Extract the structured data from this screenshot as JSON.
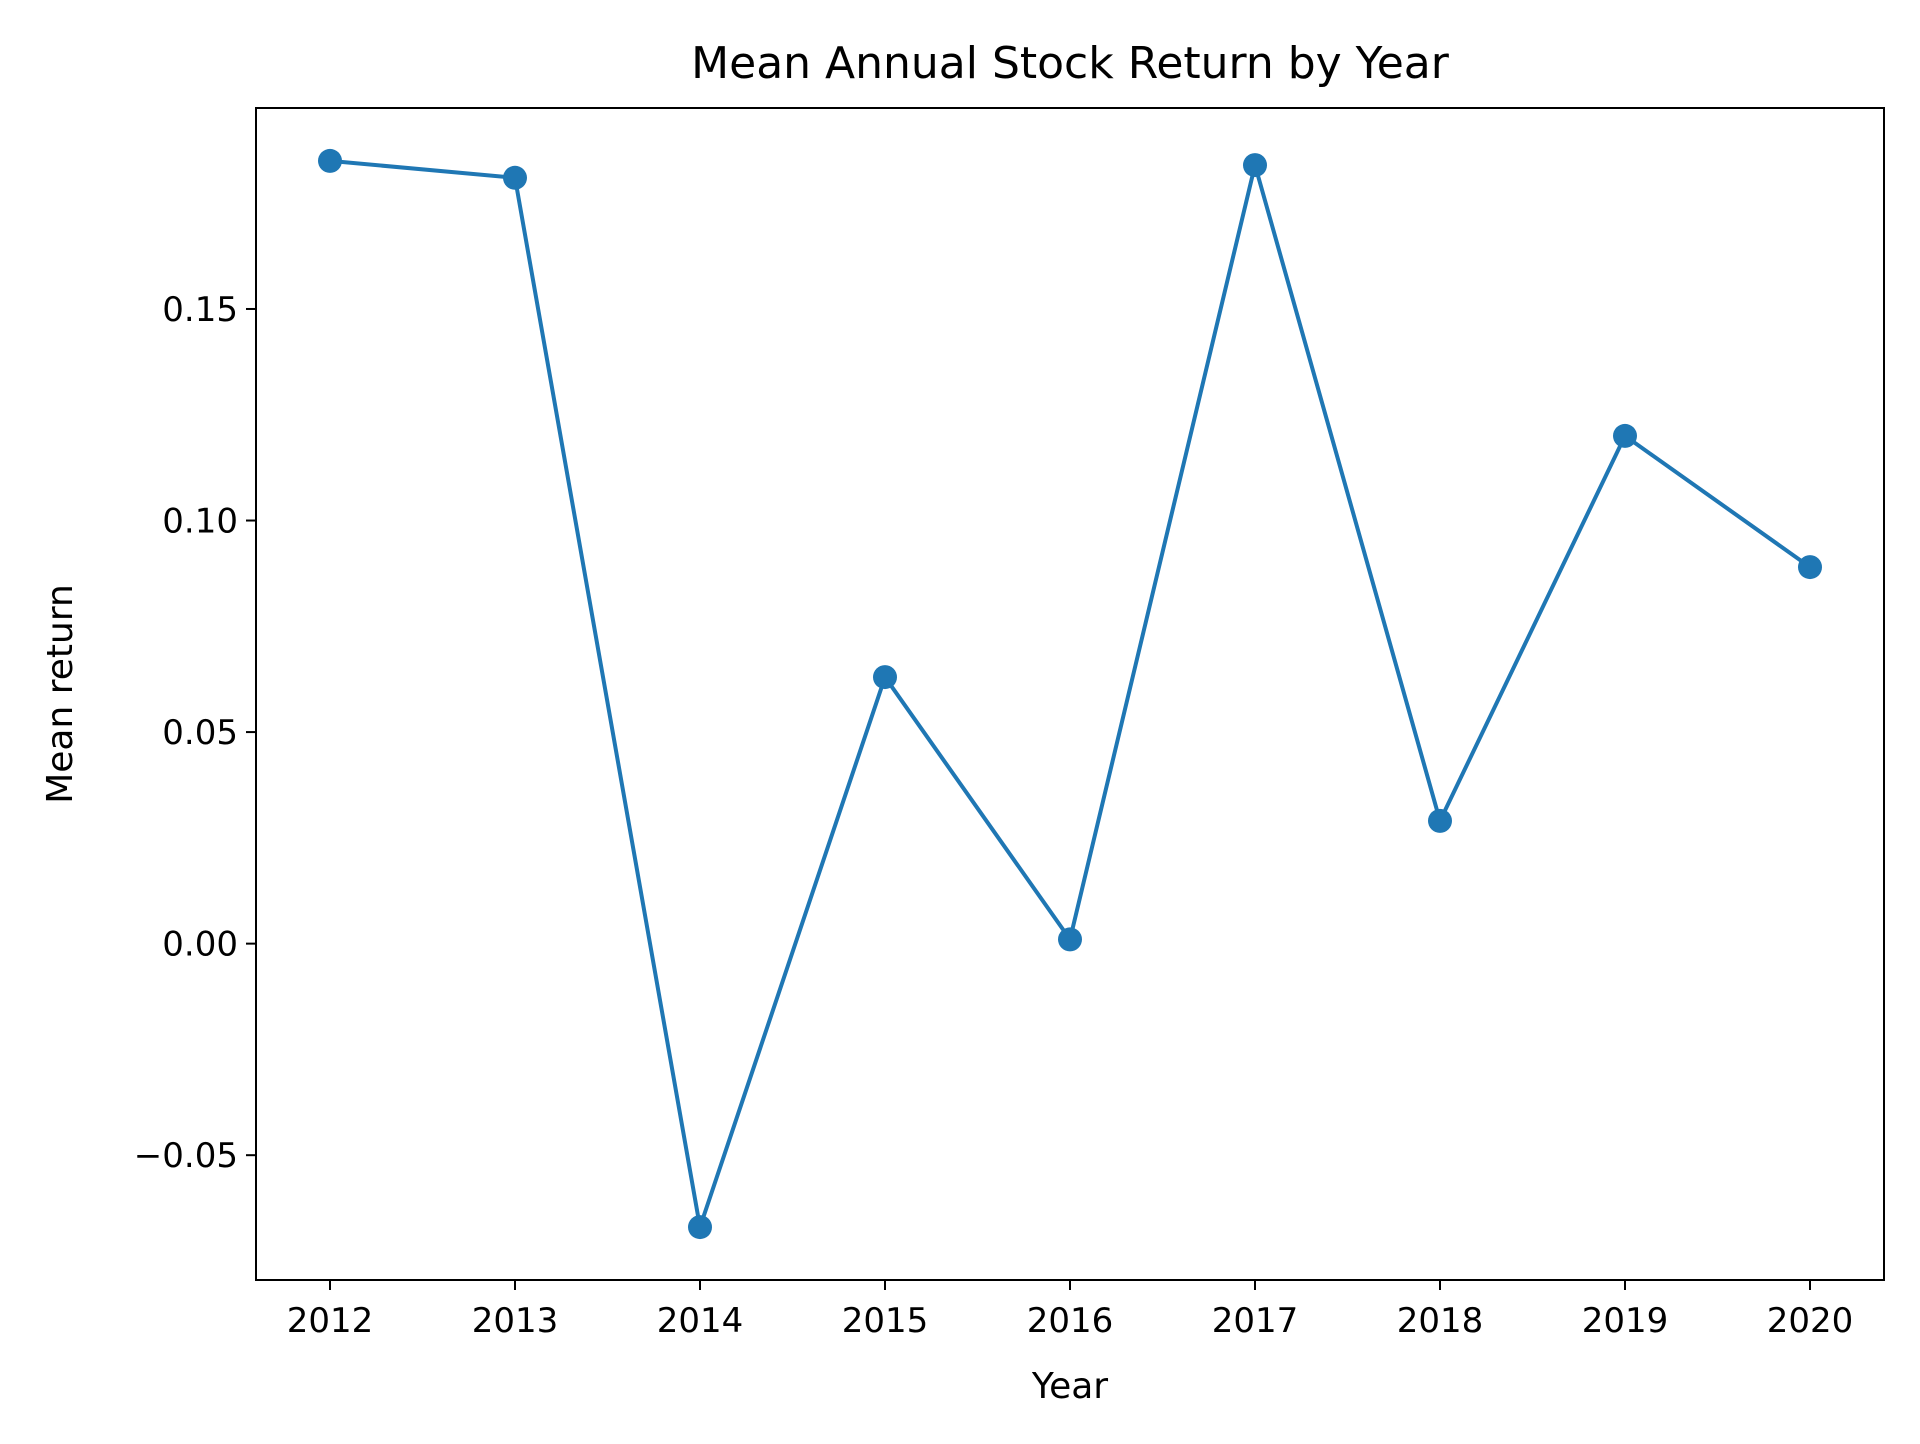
{
  "chart_data": {
    "type": "line",
    "title": "Mean Annual Stock Return by Year",
    "xlabel": "Year",
    "ylabel": "Mean return",
    "x": [
      2012,
      2013,
      2014,
      2015,
      2016,
      2017,
      2018,
      2019,
      2020
    ],
    "xticks": [
      "2012",
      "2013",
      "2014",
      "2015",
      "2016",
      "2017",
      "2018",
      "2019",
      "2020"
    ],
    "yticks": [
      -0.05,
      0.0,
      0.05,
      0.1,
      0.15
    ],
    "ytick_labels": [
      "−0.05",
      "0.00",
      "0.05",
      "0.10",
      "0.15"
    ],
    "xlim": [
      2011.6,
      2020.4
    ],
    "ylim": [
      -0.0795,
      0.1975
    ],
    "grid": false,
    "series": [
      {
        "values": [
          0.185,
          0.181,
          -0.067,
          0.063,
          0.001,
          0.184,
          0.029,
          0.12,
          0.089
        ],
        "color": "#1f77b4",
        "marker": "circle"
      }
    ]
  }
}
